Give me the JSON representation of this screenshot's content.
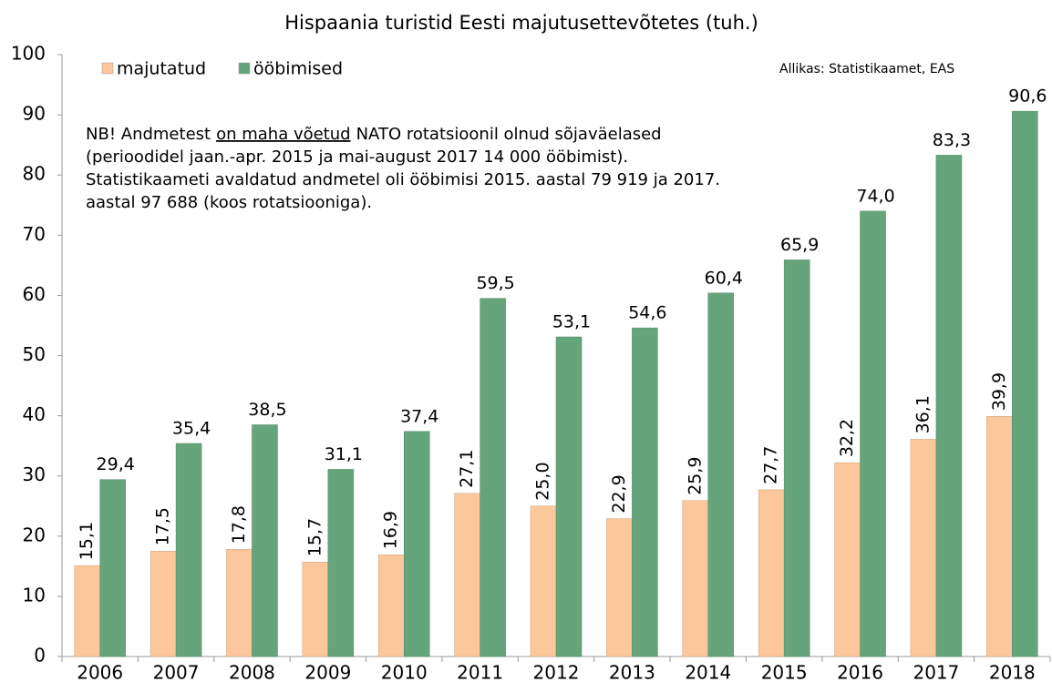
{
  "chart_data": {
    "type": "bar",
    "title": "Hispaania turistid Eesti majutusettevõtetes (tuh.)",
    "source": "Allikas: Statistikaamet, EAS",
    "note": {
      "parts": [
        "NB! Andmetest",
        "on maha võetud",
        "NATO rotatsioonil olnud sõjaväelased"
      ],
      "lines": [
        "(perioodidel jaan.-apr. 2015 ja mai-august 2017  14 000 ööbimist).",
        "Statistikaameti avaldatud andmetel oli ööbimisi 2015. aastal 79 919 ja 2017.",
        "aastal 97 688 (koos rotatsiooniga)."
      ]
    },
    "categories": [
      "2006",
      "2007",
      "2008",
      "2009",
      "2010",
      "2011",
      "2012",
      "2013",
      "2014",
      "2015",
      "2016",
      "2017",
      "2018"
    ],
    "series": [
      {
        "name": "majutatud",
        "color": "#fcc89b",
        "values": [
          15.1,
          17.5,
          17.8,
          15.7,
          16.9,
          27.1,
          25.0,
          22.9,
          25.9,
          27.7,
          32.2,
          36.1,
          39.9
        ],
        "value_labels": [
          "15,1",
          "17,5",
          "17,8",
          "15,7",
          "16,9",
          "27,1",
          "25,0",
          "22,9",
          "25,9",
          "27,7",
          "32,2",
          "36,1",
          "39,9"
        ]
      },
      {
        "name": "ööbimised",
        "color": "#66a47c",
        "values": [
          29.4,
          35.4,
          38.5,
          31.1,
          37.4,
          59.5,
          53.1,
          54.6,
          60.4,
          65.9,
          74.0,
          83.3,
          90.6
        ],
        "value_labels": [
          "29,4",
          "35,4",
          "38,5",
          "31,1",
          "37,4",
          "59,5",
          "53,1",
          "54,6",
          "60,4",
          "65,9",
          "74,0",
          "83,3",
          "90,6"
        ]
      }
    ],
    "ylim": [
      0,
      100
    ],
    "yticks": [
      0,
      10,
      20,
      30,
      40,
      50,
      60,
      70,
      80,
      90,
      100
    ],
    "grid": false
  }
}
